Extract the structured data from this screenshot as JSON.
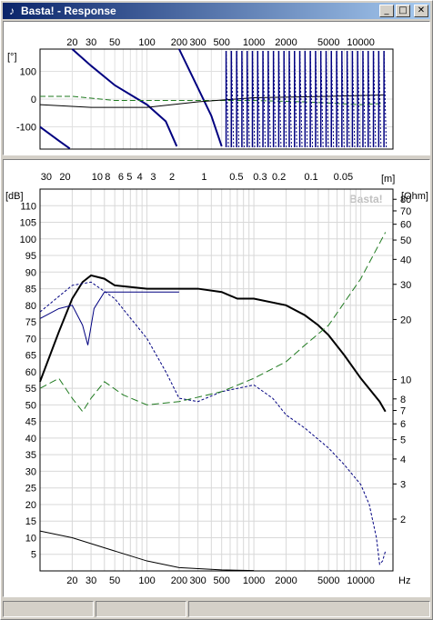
{
  "window": {
    "title": "Basta! - Response",
    "buttons": {
      "minimize": "_",
      "maximize": "□",
      "close": "✕"
    }
  },
  "colors": {
    "title_start": "#0a246a",
    "title_end": "#a6caf0",
    "spl": "#000000",
    "impedance": "#1f7a1f",
    "driver": "#000080",
    "phase": "#000080"
  },
  "phase_panel": {
    "unit": "[°]",
    "y_ticks": [
      "100",
      "0",
      "-100"
    ],
    "x_ticks": [
      "20",
      "30",
      "50",
      "100",
      "200",
      "300",
      "500",
      "1000",
      "2000",
      "5000",
      "10000"
    ]
  },
  "main_panel": {
    "distance_unit": "[m]",
    "distance_ticks": [
      "30",
      "20",
      "10",
      "8",
      "6",
      "5",
      "4",
      "3",
      "2",
      "1",
      "0.5",
      "0.3",
      "0.2",
      "0.1",
      "0.05"
    ],
    "left_unit": "[dB]",
    "right_unit": "[Ohm]",
    "watermark": "Basta!",
    "db_ticks": [
      "110",
      "105",
      "100",
      "95",
      "90",
      "85",
      "80",
      "75",
      "70",
      "65",
      "60",
      "55",
      "50",
      "45",
      "40",
      "35",
      "30",
      "25",
      "20",
      "15",
      "10",
      "5"
    ],
    "ohm_ticks": [
      "80",
      "70",
      "60",
      "50",
      "40",
      "30",
      "20",
      "10",
      "8",
      "7",
      "6",
      "5",
      "4",
      "3",
      "2"
    ],
    "x_ticks": [
      "20",
      "30",
      "50",
      "100",
      "200",
      "300",
      "500",
      "1000",
      "2000",
      "5000",
      "10000"
    ],
    "x_unit": "Hz"
  },
  "chart_data": [
    {
      "type": "line",
      "title": "",
      "xlabel": "",
      "ylabel": "[°]",
      "xscale": "log",
      "xlim": [
        10,
        20000
      ],
      "ylim": [
        -180,
        180
      ],
      "series": [
        {
          "values": [
            [
              10,
              -100
            ],
            [
              15,
              -150
            ],
            [
              19,
              -178
            ],
            [
              20,
              180
            ],
            [
              30,
              120
            ],
            [
              50,
              50
            ],
            [
              100,
              -20
            ],
            [
              150,
              -80
            ],
            [
              190,
              -170
            ],
            [
              200,
              180
            ],
            [
              300,
              40
            ],
            [
              400,
              -60
            ],
            [
              500,
              -170
            ],
            [
              520,
              180
            ]
          ]
        },
        {
          "values": [
            [
              10,
              10
            ],
            [
              20,
              10
            ],
            [
              50,
              -5
            ],
            [
              100,
              -5
            ],
            [
              200,
              -5
            ],
            [
              500,
              -5
            ],
            [
              1000,
              -5
            ],
            [
              3000,
              -10
            ],
            [
              10000,
              -20
            ],
            [
              17000,
              -15
            ]
          ]
        },
        {
          "values": [
            [
              10,
              -20
            ],
            [
              30,
              -30
            ],
            [
              100,
              -30
            ],
            [
              300,
              -10
            ],
            [
              1000,
              5
            ],
            [
              5000,
              10
            ],
            [
              17000,
              15
            ]
          ]
        }
      ]
    },
    {
      "type": "line",
      "title": "",
      "xlabel": "Hz",
      "ylabel": "[dB]",
      "y2label": "[Ohm]",
      "xscale": "log",
      "xlim": [
        10,
        20000
      ],
      "ylim": [
        0,
        115
      ],
      "grid": true,
      "series": [
        {
          "values": [
            [
              10,
              57
            ],
            [
              15,
              72
            ],
            [
              20,
              82
            ],
            [
              25,
              87
            ],
            [
              30,
              89
            ],
            [
              40,
              88
            ],
            [
              50,
              86
            ],
            [
              100,
              85
            ],
            [
              200,
              85
            ],
            [
              300,
              85
            ],
            [
              500,
              84
            ],
            [
              700,
              82
            ],
            [
              1000,
              82
            ],
            [
              2000,
              80
            ],
            [
              3000,
              77
            ],
            [
              4000,
              74
            ],
            [
              5000,
              71
            ],
            [
              7000,
              65
            ],
            [
              10000,
              58
            ],
            [
              15000,
              51
            ],
            [
              17000,
              48
            ]
          ]
        },
        {
          "values": [
            [
              10,
              76
            ],
            [
              15,
              79
            ],
            [
              20,
              80
            ],
            [
              25,
              74
            ],
            [
              28,
              68
            ],
            [
              32,
              79
            ],
            [
              40,
              84
            ],
            [
              50,
              84
            ],
            [
              100,
              84
            ],
            [
              200,
              84
            ]
          ]
        },
        {
          "values": [
            [
              10,
              78
            ],
            [
              20,
              86
            ],
            [
              30,
              87
            ],
            [
              50,
              82
            ],
            [
              100,
              70
            ],
            [
              150,
              60
            ],
            [
              200,
              52
            ],
            [
              300,
              51
            ],
            [
              500,
              54
            ],
            [
              1000,
              56
            ],
            [
              1500,
              52
            ],
            [
              2000,
              47
            ],
            [
              3000,
              43
            ],
            [
              5000,
              37
            ],
            [
              7000,
              32
            ],
            [
              10000,
              26
            ],
            [
              12000,
              20
            ],
            [
              14000,
              10
            ],
            [
              15000,
              2
            ],
            [
              16000,
              3
            ],
            [
              17000,
              6
            ]
          ]
        },
        {
          "values": [
            [
              10,
              55
            ],
            [
              15,
              58
            ],
            [
              20,
              52
            ],
            [
              25,
              48
            ],
            [
              30,
              52
            ],
            [
              40,
              57
            ],
            [
              60,
              53
            ],
            [
              100,
              50
            ],
            [
              200,
              51
            ],
            [
              500,
              54
            ],
            [
              1000,
              58
            ],
            [
              2000,
              63
            ],
            [
              3000,
              68
            ],
            [
              5000,
              74
            ],
            [
              10000,
              88
            ],
            [
              17000,
              102
            ]
          ]
        },
        {
          "values": [
            [
              10,
              12
            ],
            [
              20,
              10
            ],
            [
              50,
              6
            ],
            [
              100,
              3
            ],
            [
              200,
              1
            ],
            [
              500,
              0.3
            ],
            [
              1000,
              0.1
            ]
          ]
        }
      ]
    }
  ]
}
